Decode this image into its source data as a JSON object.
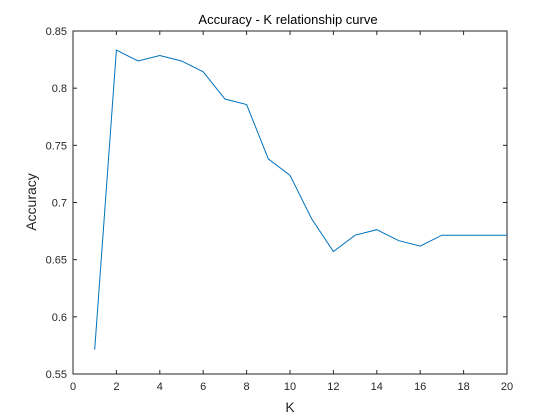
{
  "chart_data": {
    "type": "line",
    "title": "Accuracy - K relationship curve",
    "xlabel": "K",
    "ylabel": "Accuracy",
    "xlim": [
      0,
      20
    ],
    "ylim": [
      0.55,
      0.85
    ],
    "xticks": [
      "0",
      "2",
      "4",
      "6",
      "8",
      "10",
      "12",
      "14",
      "16",
      "18",
      "20"
    ],
    "yticks": [
      "0.55",
      "0.6",
      "0.65",
      "0.7",
      "0.75",
      "0.8",
      "0.85"
    ],
    "grid": false,
    "series": [
      {
        "color": "#0072bd",
        "x": [
          1,
          2,
          3,
          4,
          5,
          6,
          7,
          8,
          9,
          10,
          11,
          12,
          13,
          14,
          15,
          16,
          17,
          18,
          19,
          20
        ],
        "y": [
          0.5714,
          0.8333,
          0.8238,
          0.8286,
          0.8238,
          0.8143,
          0.7905,
          0.7857,
          0.7381,
          0.7238,
          0.6857,
          0.6571,
          0.6714,
          0.6762,
          0.6667,
          0.6619,
          0.6714,
          0.6714,
          0.6714,
          0.6714
        ]
      }
    ]
  }
}
